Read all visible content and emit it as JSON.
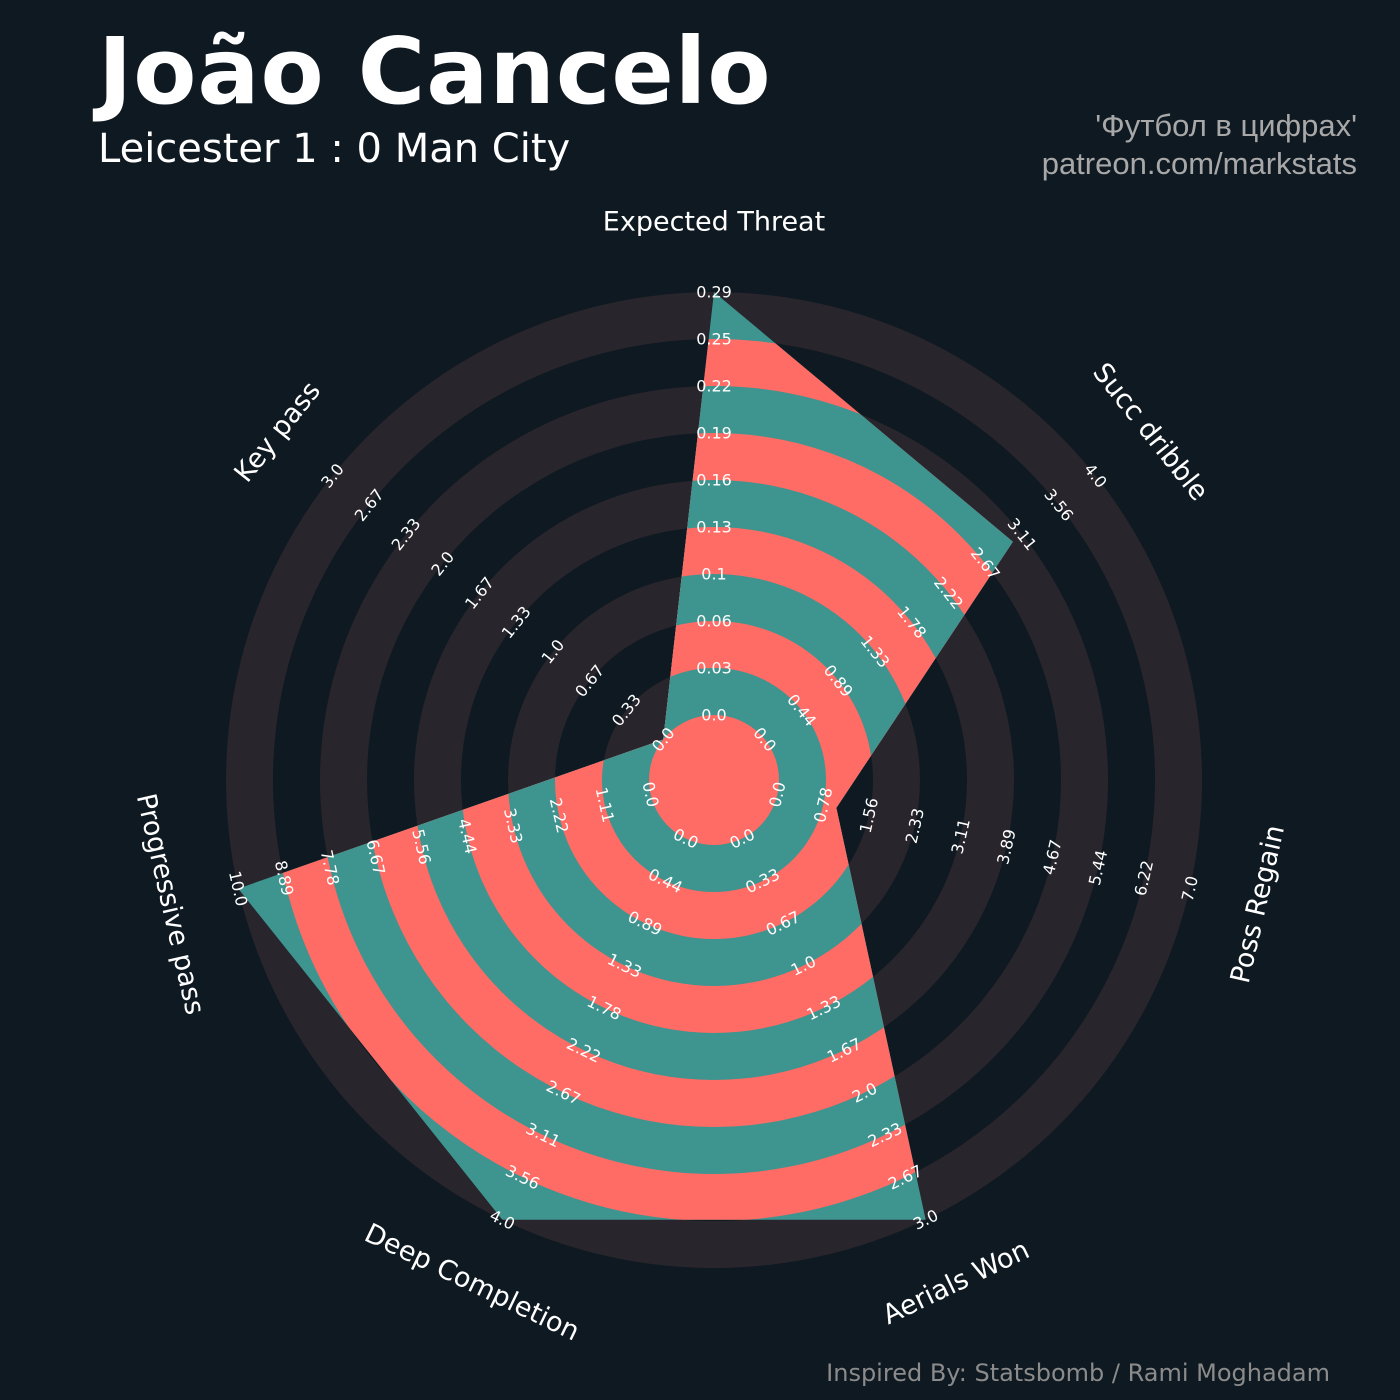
{
  "header": {
    "title": "João Cancelo",
    "subtitle": "Leicester 1 : 0 Man City",
    "credit_line1": "'Футбол в цифрах'",
    "credit_line2": "patreon.com/markstats"
  },
  "footer": {
    "text": "Inspired By: Statsbomb / Rami Moghadam"
  },
  "colors": {
    "background": "#0f1921",
    "ring_dark": "#29252c",
    "band_teal": "#3e948f",
    "band_red": "#ff6b65",
    "text": "#ffffff"
  },
  "chart_data": {
    "type": "radar",
    "title": "João Cancelo",
    "subtitle": "Leicester 1 : 0 Man City",
    "rings": 9,
    "axes": [
      {
        "name": "Expected Threat",
        "min": 0.0,
        "max": 0.29,
        "value": 0.29,
        "ticks": [
          "0.0",
          "0.03",
          "0.06",
          "0.1",
          "0.13",
          "0.16",
          "0.19",
          "0.22",
          "0.25",
          "0.29"
        ]
      },
      {
        "name": "Succ dribble",
        "min": 0.0,
        "max": 4.0,
        "value": 3.0,
        "ticks": [
          "0.0",
          "0.44",
          "0.89",
          "1.33",
          "1.78",
          "2.22",
          "2.67",
          "3.11",
          "3.56",
          "4.0"
        ]
      },
      {
        "name": "Poss Regain",
        "min": 0.0,
        "max": 7.0,
        "value": 1.0,
        "ticks": [
          "0.0",
          "0.78",
          "1.56",
          "2.33",
          "3.11",
          "3.89",
          "4.67",
          "5.44",
          "6.22",
          "7.0"
        ]
      },
      {
        "name": "Aerials Won",
        "min": 0.0,
        "max": 3.0,
        "value": 3.0,
        "ticks": [
          "0.0",
          "0.33",
          "0.67",
          "1.0",
          "1.33",
          "1.67",
          "2.0",
          "2.33",
          "2.67",
          "3.0"
        ]
      },
      {
        "name": "Deep Completion",
        "min": 0.0,
        "max": 4.0,
        "value": 4.0,
        "ticks": [
          "0.0",
          "0.44",
          "0.89",
          "1.33",
          "1.78",
          "2.22",
          "2.67",
          "3.11",
          "3.56",
          "4.0"
        ]
      },
      {
        "name": "Progressive pass",
        "min": 0.0,
        "max": 10.0,
        "value": 10.0,
        "ticks": [
          "0.0",
          "1.11",
          "2.22",
          "3.33",
          "4.44",
          "5.56",
          "6.67",
          "7.78",
          "8.89",
          "10.0"
        ]
      },
      {
        "name": "Key pass",
        "min": 0.0,
        "max": 3.0,
        "value": 0.0,
        "ticks": [
          "0.0",
          "0.33",
          "0.67",
          "1.0",
          "1.33",
          "1.67",
          "2.0",
          "2.33",
          "2.67",
          "3.0"
        ]
      }
    ]
  }
}
